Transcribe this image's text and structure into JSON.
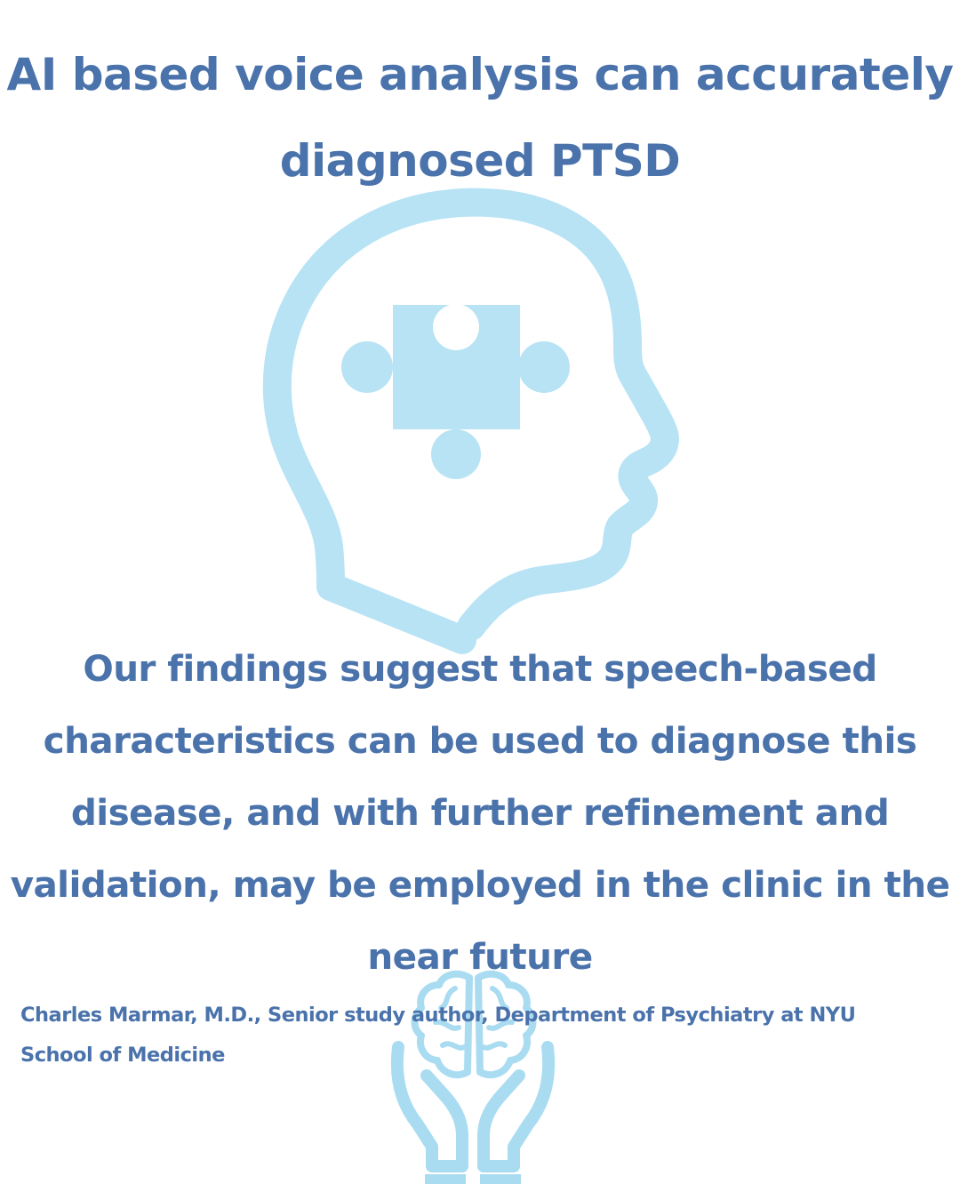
{
  "poster": {
    "title": "AI based voice analysis can accurately diagnosed PTSD",
    "quote": "Our findings suggest that speech-based characteristics can be used to diagnose this disease, and with further refinement and validation, may be employed in the clinic in the near future",
    "attribution": "Charles Marmar, M.D., Senior study author, Department of Psychiatry at NYU School of Medicine"
  },
  "icons": {
    "head": "head-with-puzzle-piece-icon",
    "brain": "brain-in-hands-icon"
  },
  "colors": {
    "text": "#4a72ab",
    "illustration": "#b7e3f4",
    "illustration_light": "#a9dcf1",
    "background": "#ffffff"
  }
}
